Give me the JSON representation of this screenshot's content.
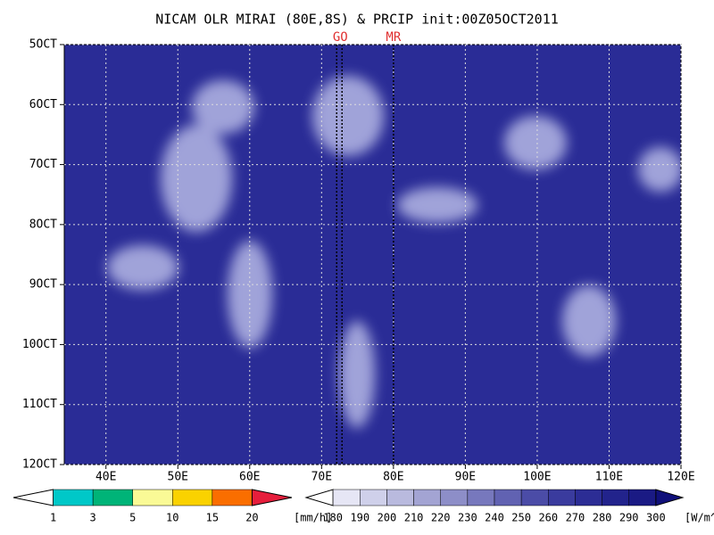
{
  "title": "NICAM OLR MIRAI (80E,8S) & PRCIP init:00Z05OCT2011",
  "plot": {
    "xlim": [
      34.2,
      120
    ],
    "ylim": [
      5,
      12
    ],
    "xticks": [
      {
        "value": 40,
        "label": "40E"
      },
      {
        "value": 50,
        "label": "50E"
      },
      {
        "value": 60,
        "label": "60E"
      },
      {
        "value": 70,
        "label": "70E"
      },
      {
        "value": 80,
        "label": "80E"
      },
      {
        "value": 90,
        "label": "90E"
      },
      {
        "value": 100,
        "label": "100E"
      },
      {
        "value": 110,
        "label": "110E"
      },
      {
        "value": 120,
        "label": "120E"
      }
    ],
    "yticks": [
      {
        "value": 5,
        "label": "5OCT"
      },
      {
        "value": 6,
        "label": "6OCT"
      },
      {
        "value": 7,
        "label": "7OCT"
      },
      {
        "value": 8,
        "label": "8OCT"
      },
      {
        "value": 9,
        "label": "9OCT"
      },
      {
        "value": 10,
        "label": "10OCT"
      },
      {
        "value": 11,
        "label": "11OCT"
      },
      {
        "value": 12,
        "label": "12OCT"
      }
    ],
    "grid": true,
    "markers": [
      {
        "label": "GO",
        "x": 72.6
      },
      {
        "label": "MR",
        "x": 80
      }
    ]
  },
  "precip_colorbar": {
    "levels": [
      1,
      3,
      5,
      10,
      15,
      20
    ],
    "colors": [
      "#ffffff",
      "#00c8c8",
      "#00b478",
      "#fafa96",
      "#fad200",
      "#fa6e00",
      "#e61e3c"
    ],
    "unit": "[mm/h]"
  },
  "olr_colorbar": {
    "levels": [
      180,
      190,
      200,
      210,
      220,
      230,
      240,
      250,
      260,
      270,
      280,
      290,
      300
    ],
    "colors": [
      "#ffffff",
      "#e6e6f5",
      "#cfd0ea",
      "#b9bade",
      "#a3a4d3",
      "#8d8ec8",
      "#7778bd",
      "#6162b2",
      "#4b4ca7",
      "#3a3b9e",
      "#2c2d95",
      "#22238c",
      "#1a1a84",
      "#10107a"
    ],
    "unit": "[W/m^2]"
  }
}
